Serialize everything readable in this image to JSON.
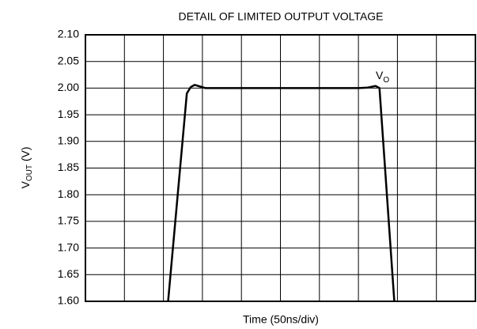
{
  "chart_data": {
    "type": "line",
    "title": "DETAIL OF LIMITED OUTPUT VOLTAGE",
    "xlabel": "Time (50ns/div)",
    "ylabel": [
      "V",
      "OUT",
      " (V)"
    ],
    "annotation": [
      "V",
      "O"
    ],
    "x": [
      106,
      130,
      135,
      140,
      147,
      154,
      350,
      362,
      372,
      377,
      396
    ],
    "series": [
      {
        "color": "#000000",
        "values": [
          1.6,
          1.99,
          2.002,
          2.006,
          2.003,
          2.0,
          2.0,
          2.001,
          2.004,
          2.0,
          1.6
        ]
      }
    ],
    "xlim": [
      0,
      500
    ],
    "xticks": [
      0,
      50,
      100,
      150,
      200,
      250,
      300,
      350,
      400,
      450,
      500
    ],
    "ylim": [
      1.6,
      2.1
    ],
    "yticks": [
      {
        "value": 1.6,
        "label": "1.60"
      },
      1.65,
      {
        "value": 1.7,
        "label": "1.70"
      },
      1.75,
      {
        "value": 1.8,
        "label": "1.80"
      },
      1.85,
      {
        "value": 1.9,
        "label": "1.90"
      },
      1.95,
      {
        "value": 2.0,
        "label": "2.00"
      },
      2.05,
      {
        "value": 2.1,
        "label": "2.10"
      }
    ],
    "grid": true
  }
}
